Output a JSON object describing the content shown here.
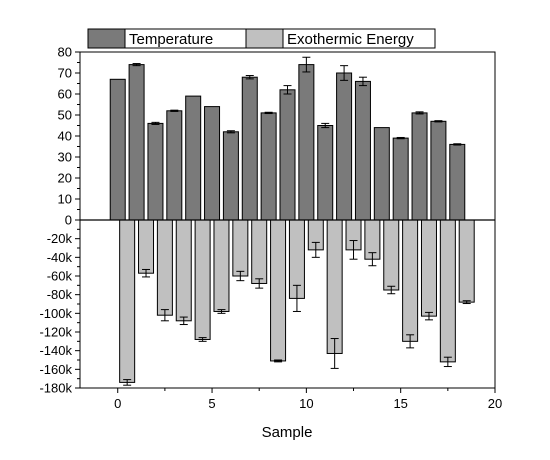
{
  "chart_data": {
    "type": "bar",
    "xlabel": "Sample",
    "legend_position": "top",
    "grid": false,
    "x_axis": {
      "range": [
        -2,
        20
      ],
      "ticks": [
        "0",
        "5",
        "10",
        "15",
        "20"
      ],
      "tick_values": [
        0,
        5,
        10,
        15,
        20
      ]
    },
    "upper_axis": {
      "range": [
        0,
        80
      ],
      "ticks": [
        "0",
        "10",
        "20",
        "30",
        "40",
        "50",
        "60",
        "70",
        "80"
      ],
      "tick_values": [
        0,
        10,
        20,
        30,
        40,
        50,
        60,
        70,
        80
      ]
    },
    "lower_axis": {
      "range": [
        -180000,
        0
      ],
      "ticks": [
        "-20k",
        "-40k",
        "-60k",
        "-80k",
        "-100k",
        "-120k",
        "-140k",
        "-160k",
        "-180k"
      ],
      "tick_values": [
        -20000,
        -40000,
        -60000,
        -80000,
        -100000,
        -120000,
        -140000,
        -160000,
        -180000
      ]
    },
    "series": [
      {
        "name": "Temperature",
        "color": "#7a7a7a",
        "x": [
          0,
          1,
          2,
          3,
          4,
          5,
          6,
          7,
          8,
          9,
          10,
          11,
          12,
          13,
          14,
          15,
          16,
          17,
          18
        ],
        "values": [
          67,
          74,
          46,
          52,
          59,
          54,
          42,
          68,
          51,
          62,
          74,
          45,
          70,
          66,
          44,
          39,
          51,
          47,
          36
        ],
        "errors": [
          0,
          0.5,
          0.5,
          0.3,
          0,
          0,
          0.5,
          0.8,
          0.3,
          2,
          3.5,
          1,
          3.5,
          2,
          0,
          0.3,
          0.5,
          0.3,
          0.3
        ]
      },
      {
        "name": "Exothermic Energy",
        "color": "#c0c0c0",
        "x": [
          0,
          1,
          2,
          3,
          4,
          5,
          6,
          7,
          8,
          9,
          10,
          11,
          12,
          13,
          14,
          15,
          16,
          17,
          18
        ],
        "values": [
          -174000,
          -57000,
          -102000,
          -108000,
          -128000,
          -98000,
          -60000,
          -68000,
          -151000,
          -84000,
          -32000,
          -143000,
          -32000,
          -42000,
          -75000,
          -130000,
          -103000,
          -152000,
          -88000
        ],
        "errors": [
          3000,
          4000,
          6000,
          4000,
          2000,
          2000,
          5000,
          5000,
          1000,
          14000,
          8000,
          16000,
          10000,
          7000,
          4000,
          7000,
          4000,
          5000,
          1500
        ]
      }
    ]
  }
}
